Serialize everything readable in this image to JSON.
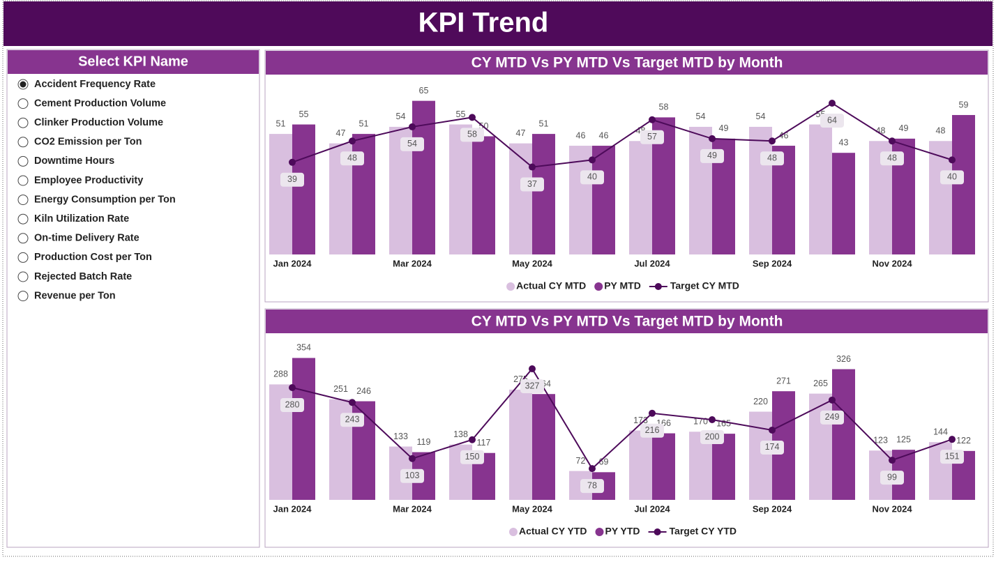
{
  "header": {
    "title": "KPI Trend"
  },
  "slicer": {
    "title": "Select KPI Name",
    "items": [
      {
        "label": "Accident Frequency Rate",
        "selected": true
      },
      {
        "label": "Cement Production Volume",
        "selected": false
      },
      {
        "label": "Clinker Production Volume",
        "selected": false
      },
      {
        "label": "CO2 Emission per Ton",
        "selected": false
      },
      {
        "label": "Downtime Hours",
        "selected": false
      },
      {
        "label": "Employee Productivity",
        "selected": false
      },
      {
        "label": "Energy Consumption per Ton",
        "selected": false
      },
      {
        "label": "Kiln Utilization Rate",
        "selected": false
      },
      {
        "label": "On-time Delivery Rate",
        "selected": false
      },
      {
        "label": "Production Cost per Ton",
        "selected": false
      },
      {
        "label": "Rejected Batch Rate",
        "selected": false
      },
      {
        "label": "Revenue per Ton",
        "selected": false
      }
    ]
  },
  "chart_data": [
    {
      "type": "combo",
      "title": "CY MTD Vs PY MTD Vs Target MTD by Month",
      "categories": [
        "Jan 2024",
        null,
        "Mar 2024",
        null,
        "May 2024",
        null,
        "Jul 2024",
        null,
        "Sep 2024",
        null,
        "Nov 2024",
        null
      ],
      "series": [
        {
          "name": "Actual CY MTD",
          "type": "bar",
          "color": "#d9bfdf",
          "values": [
            51,
            47,
            54,
            55,
            47,
            46,
            48,
            54,
            54,
            55,
            48,
            48
          ]
        },
        {
          "name": "PY MTD",
          "type": "bar",
          "color": "#87348f",
          "values": [
            55,
            51,
            65,
            50,
            51,
            46,
            58,
            49,
            46,
            43,
            49,
            59
          ]
        },
        {
          "name": "Target CY MTD",
          "type": "line",
          "color": "#4d0a5a",
          "values": [
            39,
            48,
            54,
            58,
            37,
            40,
            57,
            49,
            48,
            64,
            48,
            40
          ]
        }
      ]
    },
    {
      "type": "combo",
      "title": "CY MTD Vs PY MTD Vs Target MTD by Month",
      "categories": [
        "Jan 2024",
        null,
        "Mar 2024",
        null,
        "May 2024",
        null,
        "Jul 2024",
        null,
        "Sep 2024",
        null,
        "Nov 2024",
        null
      ],
      "series": [
        {
          "name": "Actual CY YTD",
          "type": "bar",
          "color": "#d9bfdf",
          "values": [
            288,
            251,
            133,
            138,
            275,
            72,
            173,
            170,
            220,
            265,
            123,
            144
          ]
        },
        {
          "name": "PY YTD",
          "type": "bar",
          "color": "#87348f",
          "values": [
            354,
            246,
            119,
            117,
            264,
            69,
            166,
            165,
            271,
            326,
            125,
            122
          ]
        },
        {
          "name": "Target CY YTD",
          "type": "line",
          "color": "#4d0a5a",
          "values": [
            280,
            243,
            103,
            150,
            327,
            78,
            216,
            200,
            174,
            249,
            99,
            151
          ]
        }
      ]
    }
  ]
}
